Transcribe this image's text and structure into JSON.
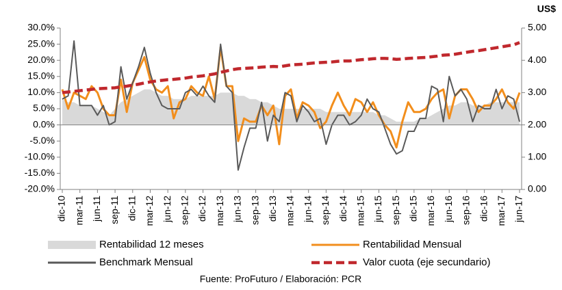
{
  "chart_data": {
    "type": "line",
    "y2_label": "US$",
    "source": "Fuente: ProFuturo / Elaboración: PCR",
    "categories": [
      "dic-10",
      null,
      null,
      "mar-11",
      null,
      null,
      "jun-11",
      null,
      null,
      "sep-11",
      null,
      null,
      "dic-11",
      null,
      null,
      "mar-12",
      null,
      null,
      "jun-12",
      null,
      null,
      "sep-12",
      null,
      null,
      "dic-12",
      null,
      null,
      "mar-13",
      null,
      null,
      "jun-13",
      null,
      null,
      "sep-13",
      null,
      null,
      "dic-13",
      null,
      null,
      "mar-14",
      null,
      null,
      "jun-14",
      null,
      null,
      "sep-14",
      null,
      null,
      "dic-14",
      null,
      null,
      "mar-15",
      null,
      null,
      "jun-15",
      null,
      null,
      "sep-15",
      null,
      null,
      "dic-15",
      null,
      null,
      "mar-16",
      null,
      null,
      "jun-16",
      null,
      null,
      "sep-16",
      null,
      null,
      "dic-16",
      null,
      null,
      "mar-17",
      null,
      null,
      "jun-17"
    ],
    "series": [
      {
        "name": "Rentabilidad 12 meses",
        "kind": "area",
        "color": "#d9d9d9",
        "values": [
          8,
          7,
          7,
          6,
          6,
          6,
          5,
          4,
          3,
          5,
          7,
          8,
          9,
          10,
          11,
          11,
          10,
          9,
          9,
          8,
          8,
          8,
          9,
          9,
          9,
          9,
          9,
          10,
          10,
          10,
          9,
          9,
          8,
          8,
          7,
          7,
          6,
          5,
          5,
          5,
          5,
          5,
          5,
          5,
          5,
          4,
          4,
          4,
          4,
          4,
          4,
          4,
          4,
          4,
          3,
          3,
          2,
          1,
          1,
          1,
          1,
          2,
          2,
          3,
          4,
          5,
          6,
          6,
          7,
          7,
          6,
          6,
          6,
          7,
          7,
          7,
          7,
          7,
          7
        ]
      },
      {
        "name": "Rentabilidad Mensual",
        "kind": "line",
        "color": "#f28e1c",
        "values": [
          11,
          5,
          10,
          9,
          8,
          12,
          10,
          5,
          3,
          3,
          14,
          4,
          13,
          17,
          21,
          14,
          11,
          10,
          12,
          2,
          7,
          8,
          12,
          10,
          9,
          15,
          8,
          24,
          12,
          12,
          -5,
          2,
          1,
          1,
          6,
          3,
          6,
          -6,
          9,
          11,
          2,
          7,
          6,
          4,
          -1,
          1,
          6,
          10,
          6,
          3,
          8,
          7,
          4,
          7,
          3,
          0,
          -2,
          -7,
          1,
          7,
          4,
          4,
          5,
          8,
          10,
          11,
          2,
          9,
          11,
          11,
          8,
          4,
          6,
          6,
          8,
          11,
          7,
          5,
          10
        ]
      },
      {
        "name": "Benchmark Mensual",
        "kind": "line",
        "color": "#595959",
        "values": [
          8,
          9,
          26,
          6,
          6,
          6,
          3,
          6,
          0,
          1,
          18,
          8,
          13,
          18,
          24,
          16,
          10,
          6,
          5,
          5,
          5,
          10,
          11,
          9,
          12,
          9,
          7,
          25,
          12,
          10,
          -14,
          -7,
          -1,
          -1,
          7,
          -5,
          3,
          1,
          10,
          9,
          1,
          6,
          4,
          1,
          2,
          -6,
          0,
          3,
          3,
          0,
          1,
          3,
          8,
          5,
          4,
          -1,
          -6,
          -9,
          -8,
          -2,
          -2,
          2,
          2,
          12,
          11,
          1,
          15,
          9,
          11,
          8,
          1,
          6,
          5,
          5,
          11,
          5,
          9,
          8,
          1
        ]
      },
      {
        "name": "Valor cuota (eje secundario)",
        "kind": "line",
        "dash": true,
        "axis": "y2",
        "color": "#c0282d",
        "values": [
          3.0,
          3.02,
          3.04,
          3.06,
          3.08,
          3.1,
          3.12,
          3.13,
          3.14,
          3.15,
          3.18,
          3.2,
          3.23,
          3.26,
          3.3,
          3.33,
          3.36,
          3.38,
          3.4,
          3.41,
          3.43,
          3.45,
          3.48,
          3.5,
          3.52,
          3.55,
          3.58,
          3.63,
          3.67,
          3.71,
          3.74,
          3.75,
          3.76,
          3.77,
          3.79,
          3.8,
          3.81,
          3.8,
          3.83,
          3.86,
          3.87,
          3.88,
          3.9,
          3.92,
          3.93,
          3.94,
          3.95,
          3.97,
          3.98,
          3.98,
          4.0,
          4.02,
          4.03,
          4.05,
          4.06,
          4.06,
          4.05,
          4.03,
          4.04,
          4.06,
          4.07,
          4.08,
          4.09,
          4.11,
          4.13,
          4.16,
          4.17,
          4.19,
          4.22,
          4.25,
          4.28,
          4.3,
          4.33,
          4.36,
          4.39,
          4.42,
          4.45,
          4.48,
          4.55
        ]
      }
    ],
    "ylim": [
      -20,
      30
    ],
    "yticks": [
      {
        "value": -20,
        "label": "-20.0%"
      },
      {
        "value": -15,
        "label": "-15.0%"
      },
      {
        "value": -10,
        "label": "-10.0%"
      },
      {
        "value": -5,
        "label": "-5.0%"
      },
      {
        "value": 0,
        "label": "0.0%"
      },
      {
        "value": 5,
        "label": "5.0%"
      },
      {
        "value": 10,
        "label": "10.0%"
      },
      {
        "value": 15,
        "label": "15.0%"
      },
      {
        "value": 20,
        "label": "20.0%"
      },
      {
        "value": 25,
        "label": "25.0%"
      },
      {
        "value": 30,
        "label": "30.0%"
      }
    ],
    "y2lim": [
      0,
      5
    ],
    "y2ticks": [
      {
        "value": 0,
        "label": "0.00"
      },
      {
        "value": 1,
        "label": "1.00"
      },
      {
        "value": 2,
        "label": "2.00"
      },
      {
        "value": 3,
        "label": "3.00"
      },
      {
        "value": 4,
        "label": "4.00"
      },
      {
        "value": 5,
        "label": "5.00"
      }
    ],
    "grid": false
  }
}
